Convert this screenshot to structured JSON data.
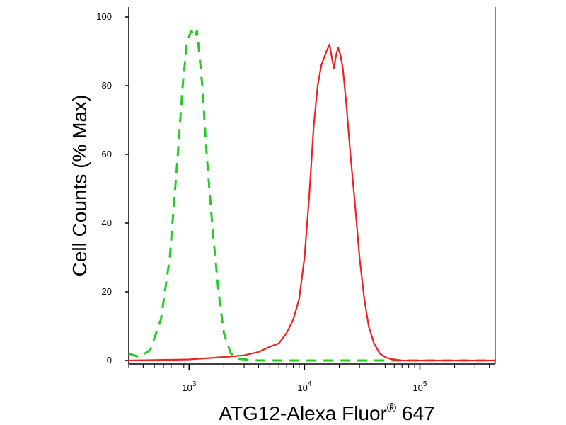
{
  "chart_data": {
    "type": "line",
    "title": "",
    "xlabel": {
      "text": "ATG12-Alexa Fluor",
      "superscript": "®",
      "suffix": " 647"
    },
    "ylabel": "Cell Counts (% Max)",
    "xscale": "log",
    "xlim": [
      300,
      450000
    ],
    "ylim": [
      0,
      105
    ],
    "yticks": [
      {
        "value": 0,
        "label": "0"
      },
      {
        "value": 20,
        "label": "20"
      },
      {
        "value": 40,
        "label": "40"
      },
      {
        "value": 60,
        "label": "60"
      },
      {
        "value": 80,
        "label": "80"
      },
      {
        "value": 100,
        "label": "100"
      }
    ],
    "xticks_major": [
      {
        "value": 1000,
        "base": "10",
        "exp": "3"
      },
      {
        "value": 10000,
        "base": "10",
        "exp": "4"
      },
      {
        "value": 100000,
        "base": "10",
        "exp": "5"
      }
    ],
    "grid": false,
    "legend": "none",
    "series": [
      {
        "color": "#22cc22",
        "style": "dashed",
        "x": [
          300,
          370,
          460,
          570,
          680,
          790,
          880,
          960,
          1050,
          1120,
          1170,
          1220,
          1300,
          1420,
          1600,
          1800,
          2000,
          2300,
          2700,
          3300,
          4000,
          6000,
          10000,
          30000,
          100000,
          450000
        ],
        "y": [
          2,
          1,
          3,
          12,
          30,
          58,
          80,
          93,
          96,
          94,
          96,
          90,
          80,
          60,
          38,
          20,
          8,
          2,
          0.5,
          0.2,
          0,
          0,
          0,
          0,
          0,
          0
        ]
      },
      {
        "color": "#ee2222",
        "style": "solid",
        "x": [
          300,
          1000,
          2000,
          3000,
          4000,
          5000,
          6000,
          7000,
          8000,
          9000,
          10000,
          11000,
          12000,
          13000,
          14000,
          15500,
          16500,
          17300,
          18000,
          18800,
          19600,
          20500,
          21500,
          23000,
          25000,
          27500,
          30000,
          33000,
          36000,
          40000,
          45000,
          50000,
          55000,
          60000,
          70000,
          450000
        ],
        "y": [
          0,
          0.3,
          1,
          1.5,
          2.5,
          4,
          5,
          8,
          12,
          18,
          30,
          48,
          68,
          80,
          86,
          90,
          92,
          88,
          85,
          89,
          91,
          89,
          85,
          75,
          60,
          45,
          30,
          18,
          10,
          5,
          2,
          1,
          0.5,
          0.3,
          0,
          0
        ]
      }
    ]
  }
}
